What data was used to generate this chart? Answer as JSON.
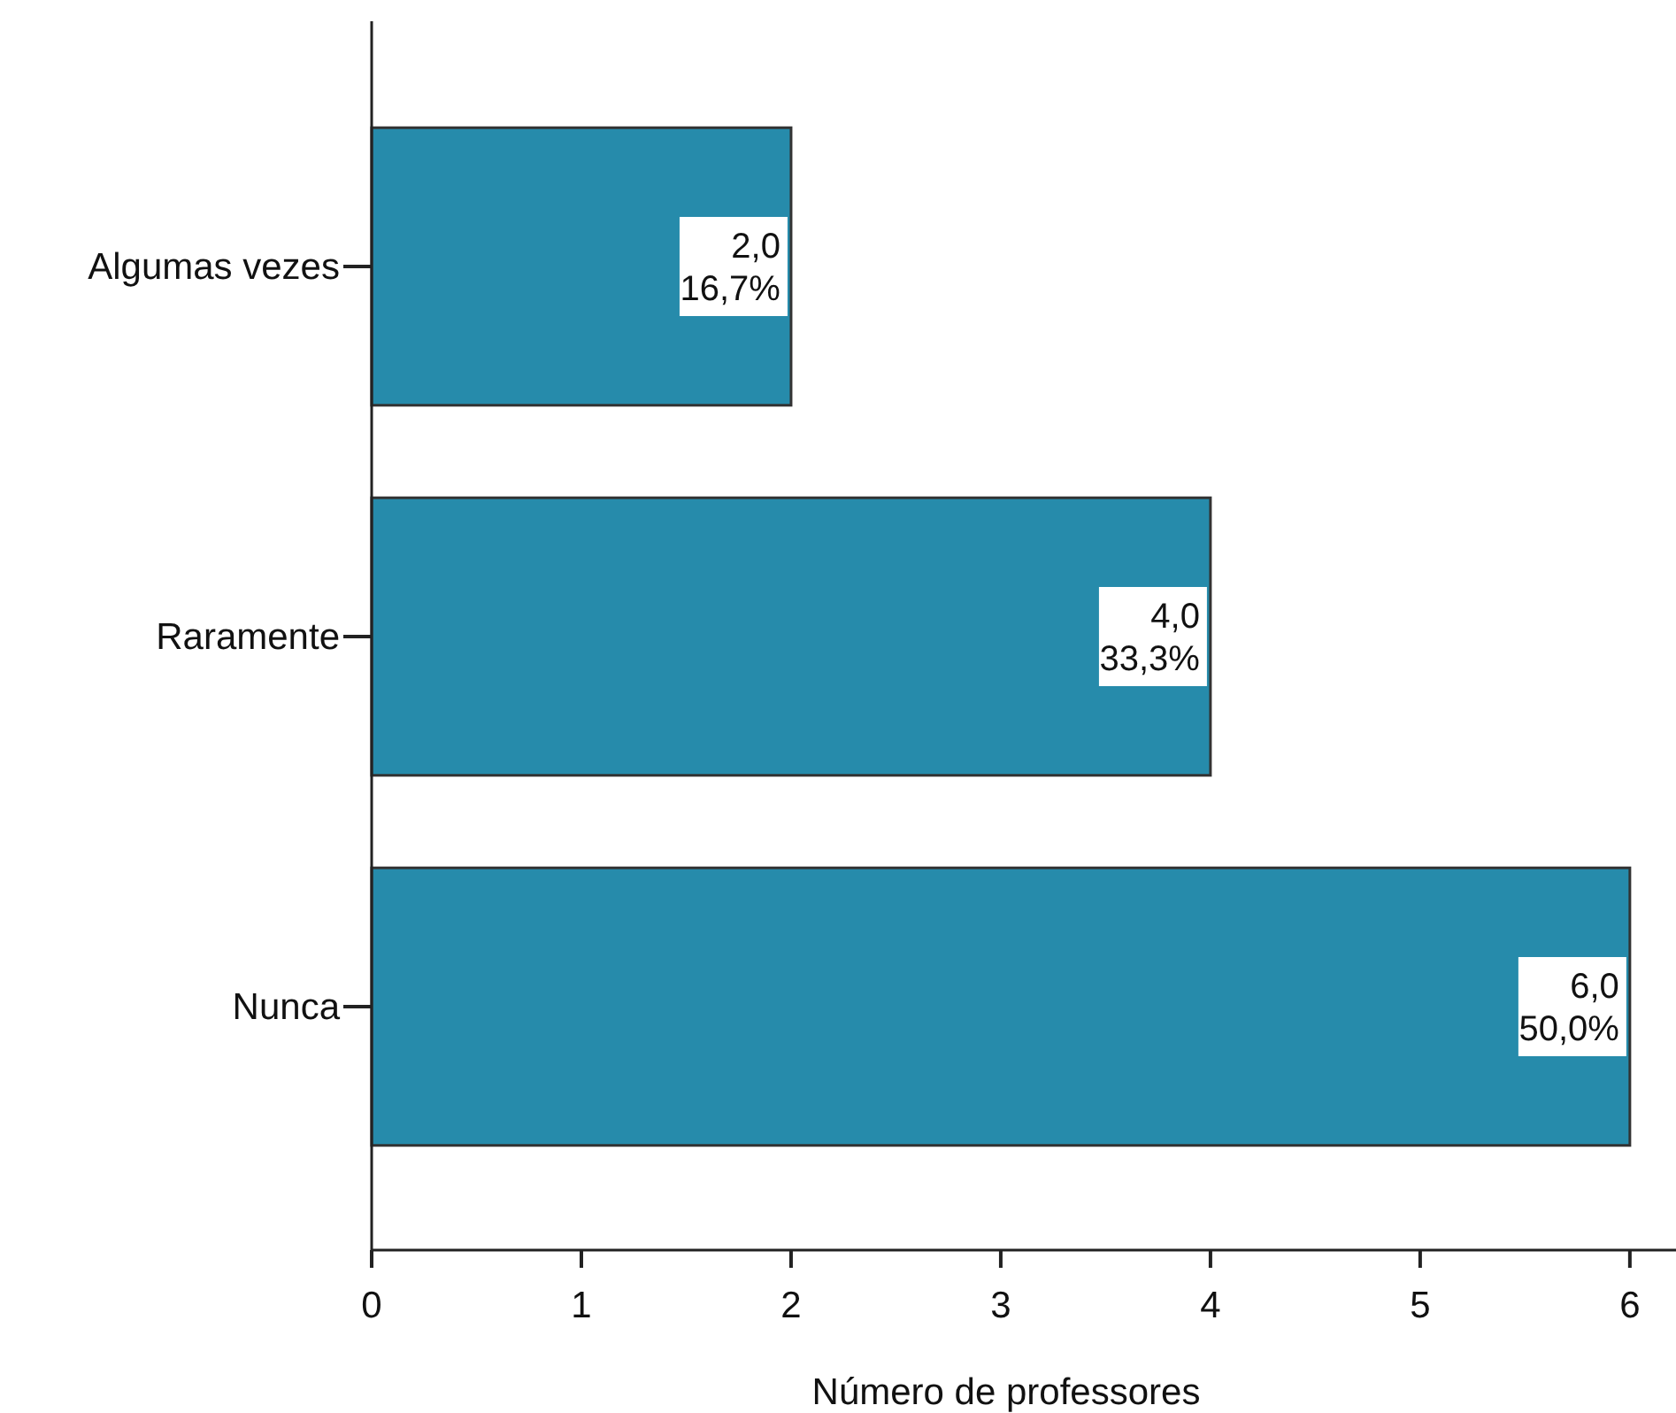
{
  "chart_data": {
    "type": "bar",
    "orientation": "horizontal",
    "categories": [
      "Algumas vezes",
      "Raramente",
      "Nunca"
    ],
    "values": [
      2,
      4,
      6
    ],
    "color": "#268bab",
    "xlim": [
      0,
      6.22
    ],
    "xticks": [
      0,
      1,
      2,
      3,
      4,
      5,
      6
    ],
    "xlabel": "Número de professores",
    "value_labels": [
      "2,0\n16,7%",
      "4,0\n33,3%",
      "6,0\n50,0%"
    ],
    "grid": false
  }
}
